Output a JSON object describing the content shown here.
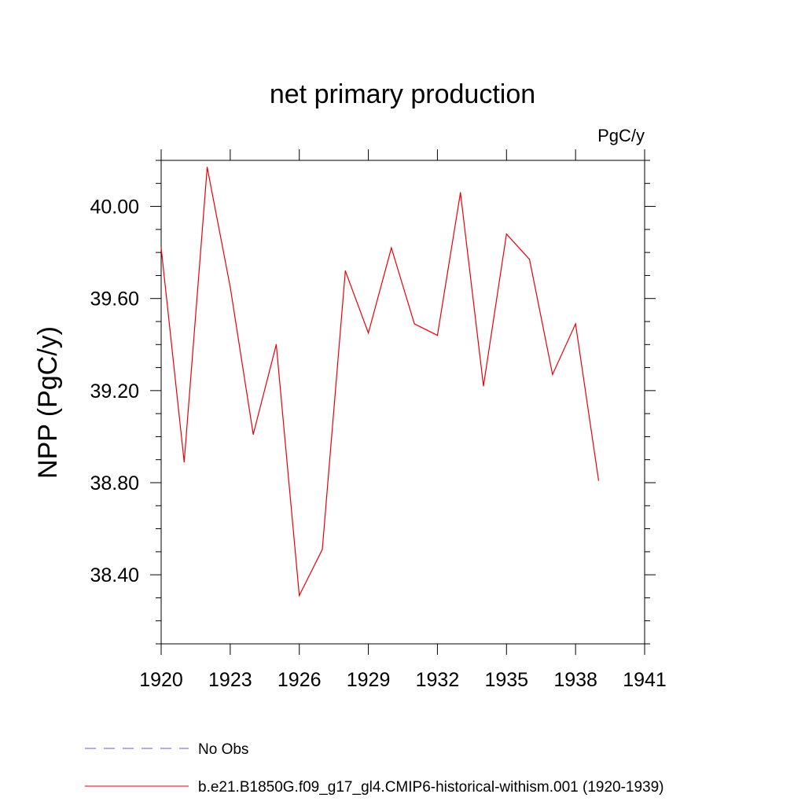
{
  "chart_data": {
    "type": "line",
    "title": "net primary production",
    "units_label": "PgC/y",
    "xlabel": "",
    "ylabel": "NPP  (PgC/y)",
    "xlim": [
      1920,
      1941
    ],
    "ylim": [
      38.1,
      40.2
    ],
    "x_ticks": [
      1920,
      1923,
      1926,
      1929,
      1932,
      1935,
      1938,
      1941
    ],
    "x_tick_labels": [
      "1920",
      "1923",
      "1926",
      "1929",
      "1932",
      "1935",
      "1938",
      "1941"
    ],
    "y_ticks": [
      38.4,
      38.8,
      39.2,
      39.6,
      40.0
    ],
    "y_tick_labels": [
      "38.40",
      "38.80",
      "39.20",
      "39.60",
      "40.00"
    ],
    "grid": false,
    "legend_position": "bottom-left",
    "series": [
      {
        "name": "No Obs",
        "color": "#6a5acd",
        "dash": "dashed",
        "x": [],
        "y": []
      },
      {
        "name": "b.e21.B1850G.f09_g17_gl4.CMIP6-historical-withism.001 (1920-1939)",
        "color": "#e8000b",
        "dash": "solid",
        "x": [
          1920,
          1921,
          1922,
          1923,
          1924,
          1925,
          1926,
          1927,
          1928,
          1929,
          1930,
          1931,
          1932,
          1933,
          1934,
          1935,
          1936,
          1937,
          1938,
          1939
        ],
        "y": [
          39.82,
          38.89,
          40.17,
          39.65,
          39.01,
          39.4,
          38.31,
          38.51,
          39.72,
          39.45,
          39.82,
          39.49,
          39.44,
          40.06,
          39.22,
          39.88,
          39.77,
          39.27,
          39.49,
          38.81
        ]
      }
    ]
  }
}
